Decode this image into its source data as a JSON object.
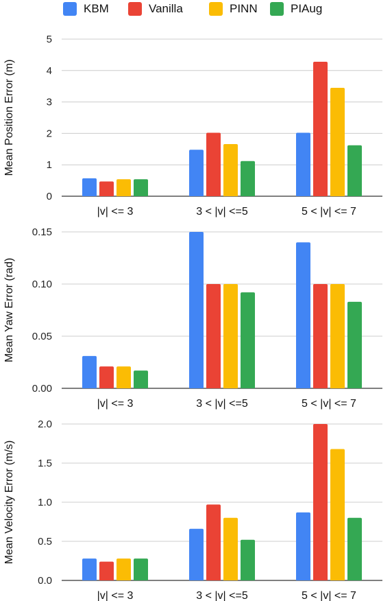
{
  "legend": [
    {
      "name": "KBM",
      "color": "#4285F4"
    },
    {
      "name": "Vanilla",
      "color": "#EA4335"
    },
    {
      "name": "PINN",
      "color": "#FBBC04"
    },
    {
      "name": "PIAug",
      "color": "#34A853"
    }
  ],
  "chart_data": [
    {
      "type": "bar",
      "title": "",
      "xlabel": "",
      "ylabel": "Mean Position Error (m)",
      "categories": [
        "|v| <= 3",
        "3 < |v| <=5",
        "5 < |v| <= 7"
      ],
      "ylim": [
        0,
        5
      ],
      "yticks": [
        0,
        1,
        2,
        3,
        4,
        5
      ],
      "ytick_labels": [
        "0",
        "1",
        "2",
        "3",
        "4",
        "5"
      ],
      "grid": true,
      "series": [
        {
          "name": "KBM",
          "values": [
            0.57,
            1.48,
            2.02
          ]
        },
        {
          "name": "Vanilla",
          "values": [
            0.47,
            2.02,
            4.28
          ]
        },
        {
          "name": "PINN",
          "values": [
            0.54,
            1.66,
            3.45
          ]
        },
        {
          "name": "PIAug",
          "values": [
            0.54,
            1.12,
            1.62
          ]
        }
      ]
    },
    {
      "type": "bar",
      "title": "",
      "xlabel": "",
      "ylabel": "Mean Yaw Error (rad)",
      "categories": [
        "|v| <= 3",
        "3 < |v| <=5",
        "5 < |v| <= 7"
      ],
      "ylim": [
        0,
        0.15
      ],
      "yticks": [
        0,
        0.05,
        0.1,
        0.15
      ],
      "ytick_labels": [
        "0.00",
        "0.05",
        "0.10",
        "0.15"
      ],
      "grid": true,
      "series": [
        {
          "name": "KBM",
          "values": [
            0.031,
            0.15,
            0.14
          ]
        },
        {
          "name": "Vanilla",
          "values": [
            0.021,
            0.1,
            0.1
          ]
        },
        {
          "name": "PINN",
          "values": [
            0.021,
            0.1,
            0.1
          ]
        },
        {
          "name": "PIAug",
          "values": [
            0.017,
            0.092,
            0.083
          ]
        }
      ]
    },
    {
      "type": "bar",
      "title": "",
      "xlabel": "",
      "ylabel": "Mean Velocity Error (m/s)",
      "categories": [
        "|v| <= 3",
        "3 < |v| <=5",
        "5 < |v| <= 7"
      ],
      "ylim": [
        0,
        2.0
      ],
      "yticks": [
        0,
        0.5,
        1.0,
        1.5,
        2.0
      ],
      "ytick_labels": [
        "0.0",
        "0.5",
        "1.0",
        "1.5",
        "2.0"
      ],
      "grid": true,
      "series": [
        {
          "name": "KBM",
          "values": [
            0.28,
            0.66,
            0.87
          ]
        },
        {
          "name": "Vanilla",
          "values": [
            0.24,
            0.97,
            2.0
          ]
        },
        {
          "name": "PINN",
          "values": [
            0.28,
            0.8,
            1.68
          ]
        },
        {
          "name": "PIAug",
          "values": [
            0.28,
            0.52,
            0.8
          ]
        }
      ]
    }
  ]
}
